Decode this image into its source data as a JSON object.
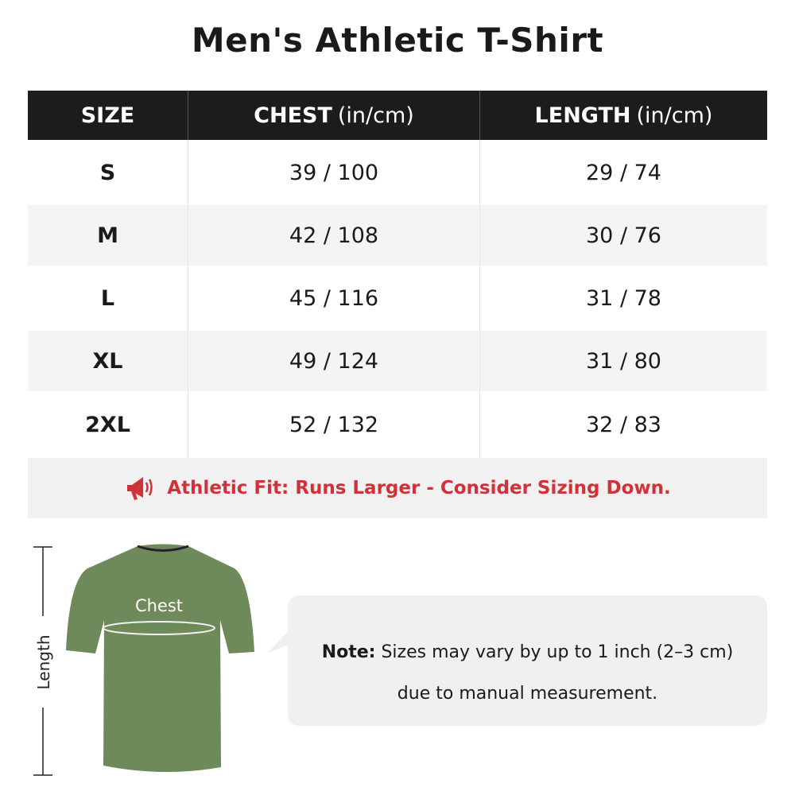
{
  "title": "Men's Athletic T-Shirt",
  "table": {
    "headers": [
      {
        "bold": "SIZE",
        "unit": ""
      },
      {
        "bold": "CHEST",
        "unit": "(in/cm)"
      },
      {
        "bold": "LENGTH",
        "unit": "(in/cm)"
      }
    ],
    "rows": [
      {
        "size": "S",
        "chest": "39 / 100",
        "length": "29 / 74"
      },
      {
        "size": "M",
        "chest": "42 / 108",
        "length": "30 / 76"
      },
      {
        "size": "L",
        "chest": "45 / 116",
        "length": "31 / 78"
      },
      {
        "size": "XL",
        "chest": "49 / 124",
        "length": "31 / 80"
      },
      {
        "size": "2XL",
        "chest": "52 / 132",
        "length": "32 / 83"
      }
    ],
    "fit_note": "Athletic Fit: Runs Larger - Consider Sizing Down.",
    "fit_icon": "megaphone-icon"
  },
  "diagram": {
    "chest_label": "Chest",
    "length_label": "Length",
    "shirt_color": "#6f8a5a"
  },
  "note": {
    "label": "Note:",
    "line1": "Sizes may vary by up to 1 inch (2–3 cm)",
    "line2": "due to manual measurement."
  },
  "colors": {
    "header_bg": "#1c1c1c",
    "accent_red": "#d0323a"
  }
}
